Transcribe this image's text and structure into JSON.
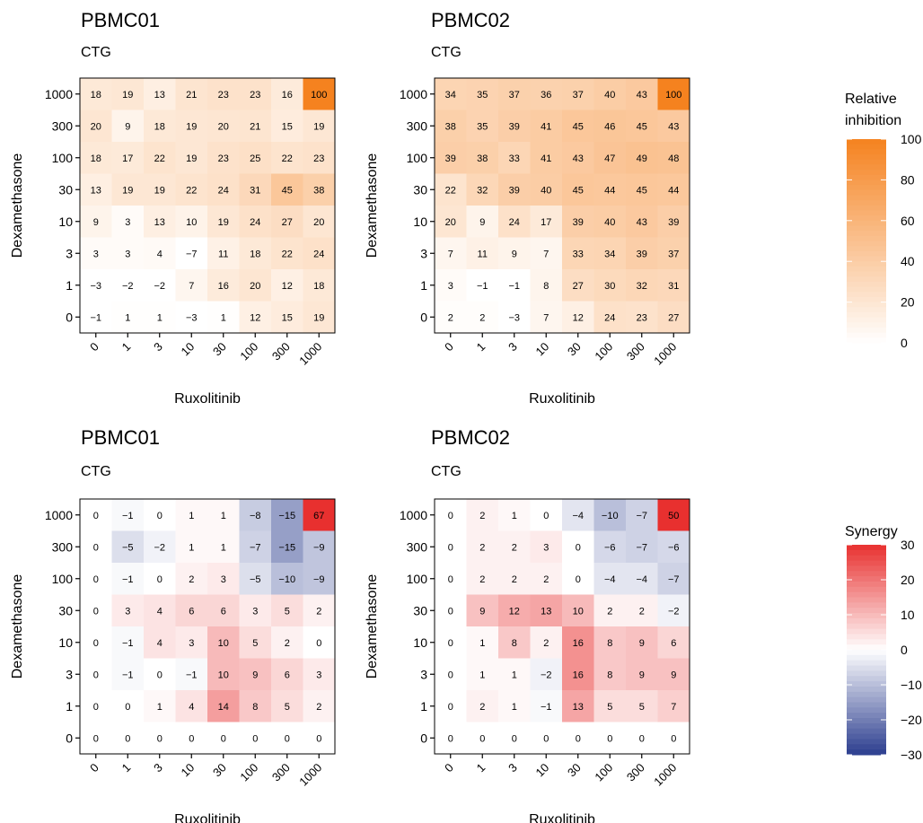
{
  "legends": {
    "inhibition": {
      "title_line1": "Relative",
      "title_line2": "inhibition",
      "ticks": [
        "0",
        "20",
        "40",
        "60",
        "80",
        "100"
      ],
      "tick_values": [
        0,
        20,
        40,
        60,
        80,
        100
      ],
      "range": [
        0,
        100
      ],
      "colors": {
        "low": "#ffffff",
        "high": "#f5821f"
      }
    },
    "synergy": {
      "title": "Synergy",
      "ticks": [
        "−30",
        "−20",
        "−10",
        "0",
        "10",
        "20",
        "30"
      ],
      "tick_values": [
        -30,
        -20,
        -10,
        0,
        10,
        20,
        30
      ],
      "range": [
        -30,
        30
      ],
      "colors": {
        "low": "#2c3e8f",
        "mid": "#ffffff",
        "high": "#e8302f"
      }
    }
  },
  "chart_data": [
    {
      "type": "heatmap",
      "title": "PBMC01",
      "subtitle": "CTG",
      "xlabel": "Ruxolitinib",
      "ylabel": "Dexamethasone",
      "x_categories": [
        "0",
        "1",
        "3",
        "10",
        "30",
        "100",
        "300",
        "1000"
      ],
      "y_categories": [
        "1000",
        "300",
        "100",
        "30",
        "10",
        "3",
        "1",
        "0"
      ],
      "metric": "Relative inhibition",
      "values": [
        [
          18,
          19,
          13,
          21,
          23,
          23,
          16,
          100
        ],
        [
          20,
          9,
          18,
          19,
          20,
          21,
          15,
          19
        ],
        [
          18,
          17,
          22,
          19,
          23,
          25,
          22,
          23
        ],
        [
          13,
          19,
          19,
          22,
          24,
          31,
          45,
          38
        ],
        [
          9,
          3,
          13,
          10,
          19,
          24,
          27,
          20
        ],
        [
          3,
          3,
          4,
          -7,
          11,
          18,
          22,
          24
        ],
        [
          -3,
          -2,
          -2,
          7,
          16,
          20,
          12,
          18
        ],
        [
          -1,
          1,
          1,
          -3,
          1,
          12,
          15,
          19
        ]
      ]
    },
    {
      "type": "heatmap",
      "title": "PBMC02",
      "subtitle": "CTG",
      "xlabel": "Ruxolitinib",
      "ylabel": "Dexamethasone",
      "x_categories": [
        "0",
        "1",
        "3",
        "10",
        "30",
        "100",
        "300",
        "1000"
      ],
      "y_categories": [
        "1000",
        "300",
        "100",
        "30",
        "10",
        "3",
        "1",
        "0"
      ],
      "metric": "Relative inhibition",
      "values": [
        [
          34,
          35,
          37,
          36,
          37,
          40,
          43,
          100
        ],
        [
          38,
          35,
          39,
          41,
          45,
          46,
          45,
          43
        ],
        [
          39,
          38,
          33,
          41,
          43,
          47,
          49,
          48
        ],
        [
          22,
          32,
          39,
          40,
          45,
          44,
          45,
          44
        ],
        [
          20,
          9,
          24,
          17,
          39,
          40,
          43,
          39
        ],
        [
          7,
          11,
          9,
          7,
          33,
          34,
          39,
          37
        ],
        [
          3,
          -1,
          -1,
          8,
          27,
          30,
          32,
          31
        ],
        [
          2,
          2,
          -3,
          7,
          12,
          24,
          23,
          27
        ]
      ]
    },
    {
      "type": "heatmap",
      "title": "PBMC01",
      "subtitle": "CTG",
      "xlabel": "Ruxolitinib",
      "ylabel": "Dexamethasone",
      "x_categories": [
        "0",
        "1",
        "3",
        "10",
        "30",
        "100",
        "300",
        "1000"
      ],
      "y_categories": [
        "1000",
        "300",
        "100",
        "30",
        "10",
        "3",
        "1",
        "0"
      ],
      "metric": "Synergy",
      "values": [
        [
          0,
          -1,
          0,
          1,
          1,
          -8,
          -15,
          67
        ],
        [
          0,
          -5,
          -2,
          1,
          1,
          -7,
          -15,
          -9
        ],
        [
          0,
          -1,
          0,
          2,
          3,
          -5,
          -10,
          -9
        ],
        [
          0,
          3,
          4,
          6,
          6,
          3,
          5,
          2
        ],
        [
          0,
          -1,
          4,
          3,
          10,
          5,
          2,
          0
        ],
        [
          0,
          -1,
          0,
          -1,
          10,
          9,
          6,
          3
        ],
        [
          0,
          0,
          1,
          4,
          14,
          8,
          5,
          2
        ],
        [
          0,
          0,
          0,
          0,
          0,
          0,
          0,
          0
        ]
      ]
    },
    {
      "type": "heatmap",
      "title": "PBMC02",
      "subtitle": "CTG",
      "xlabel": "Ruxolitinib",
      "ylabel": "Dexamethasone",
      "x_categories": [
        "0",
        "1",
        "3",
        "10",
        "30",
        "100",
        "300",
        "1000"
      ],
      "y_categories": [
        "1000",
        "300",
        "100",
        "30",
        "10",
        "3",
        "1",
        "0"
      ],
      "metric": "Synergy",
      "values": [
        [
          0,
          2,
          1,
          0,
          -4,
          -10,
          -7,
          50
        ],
        [
          0,
          2,
          2,
          3,
          0,
          -6,
          -7,
          -6
        ],
        [
          0,
          2,
          2,
          2,
          0,
          -4,
          -4,
          -7
        ],
        [
          0,
          9,
          12,
          13,
          10,
          2,
          2,
          -2
        ],
        [
          0,
          1,
          8,
          2,
          16,
          8,
          9,
          6
        ],
        [
          0,
          1,
          1,
          -2,
          16,
          8,
          9,
          9
        ],
        [
          0,
          2,
          1,
          -1,
          13,
          5,
          5,
          7
        ],
        [
          0,
          0,
          0,
          0,
          0,
          0,
          0,
          0
        ]
      ]
    }
  ]
}
